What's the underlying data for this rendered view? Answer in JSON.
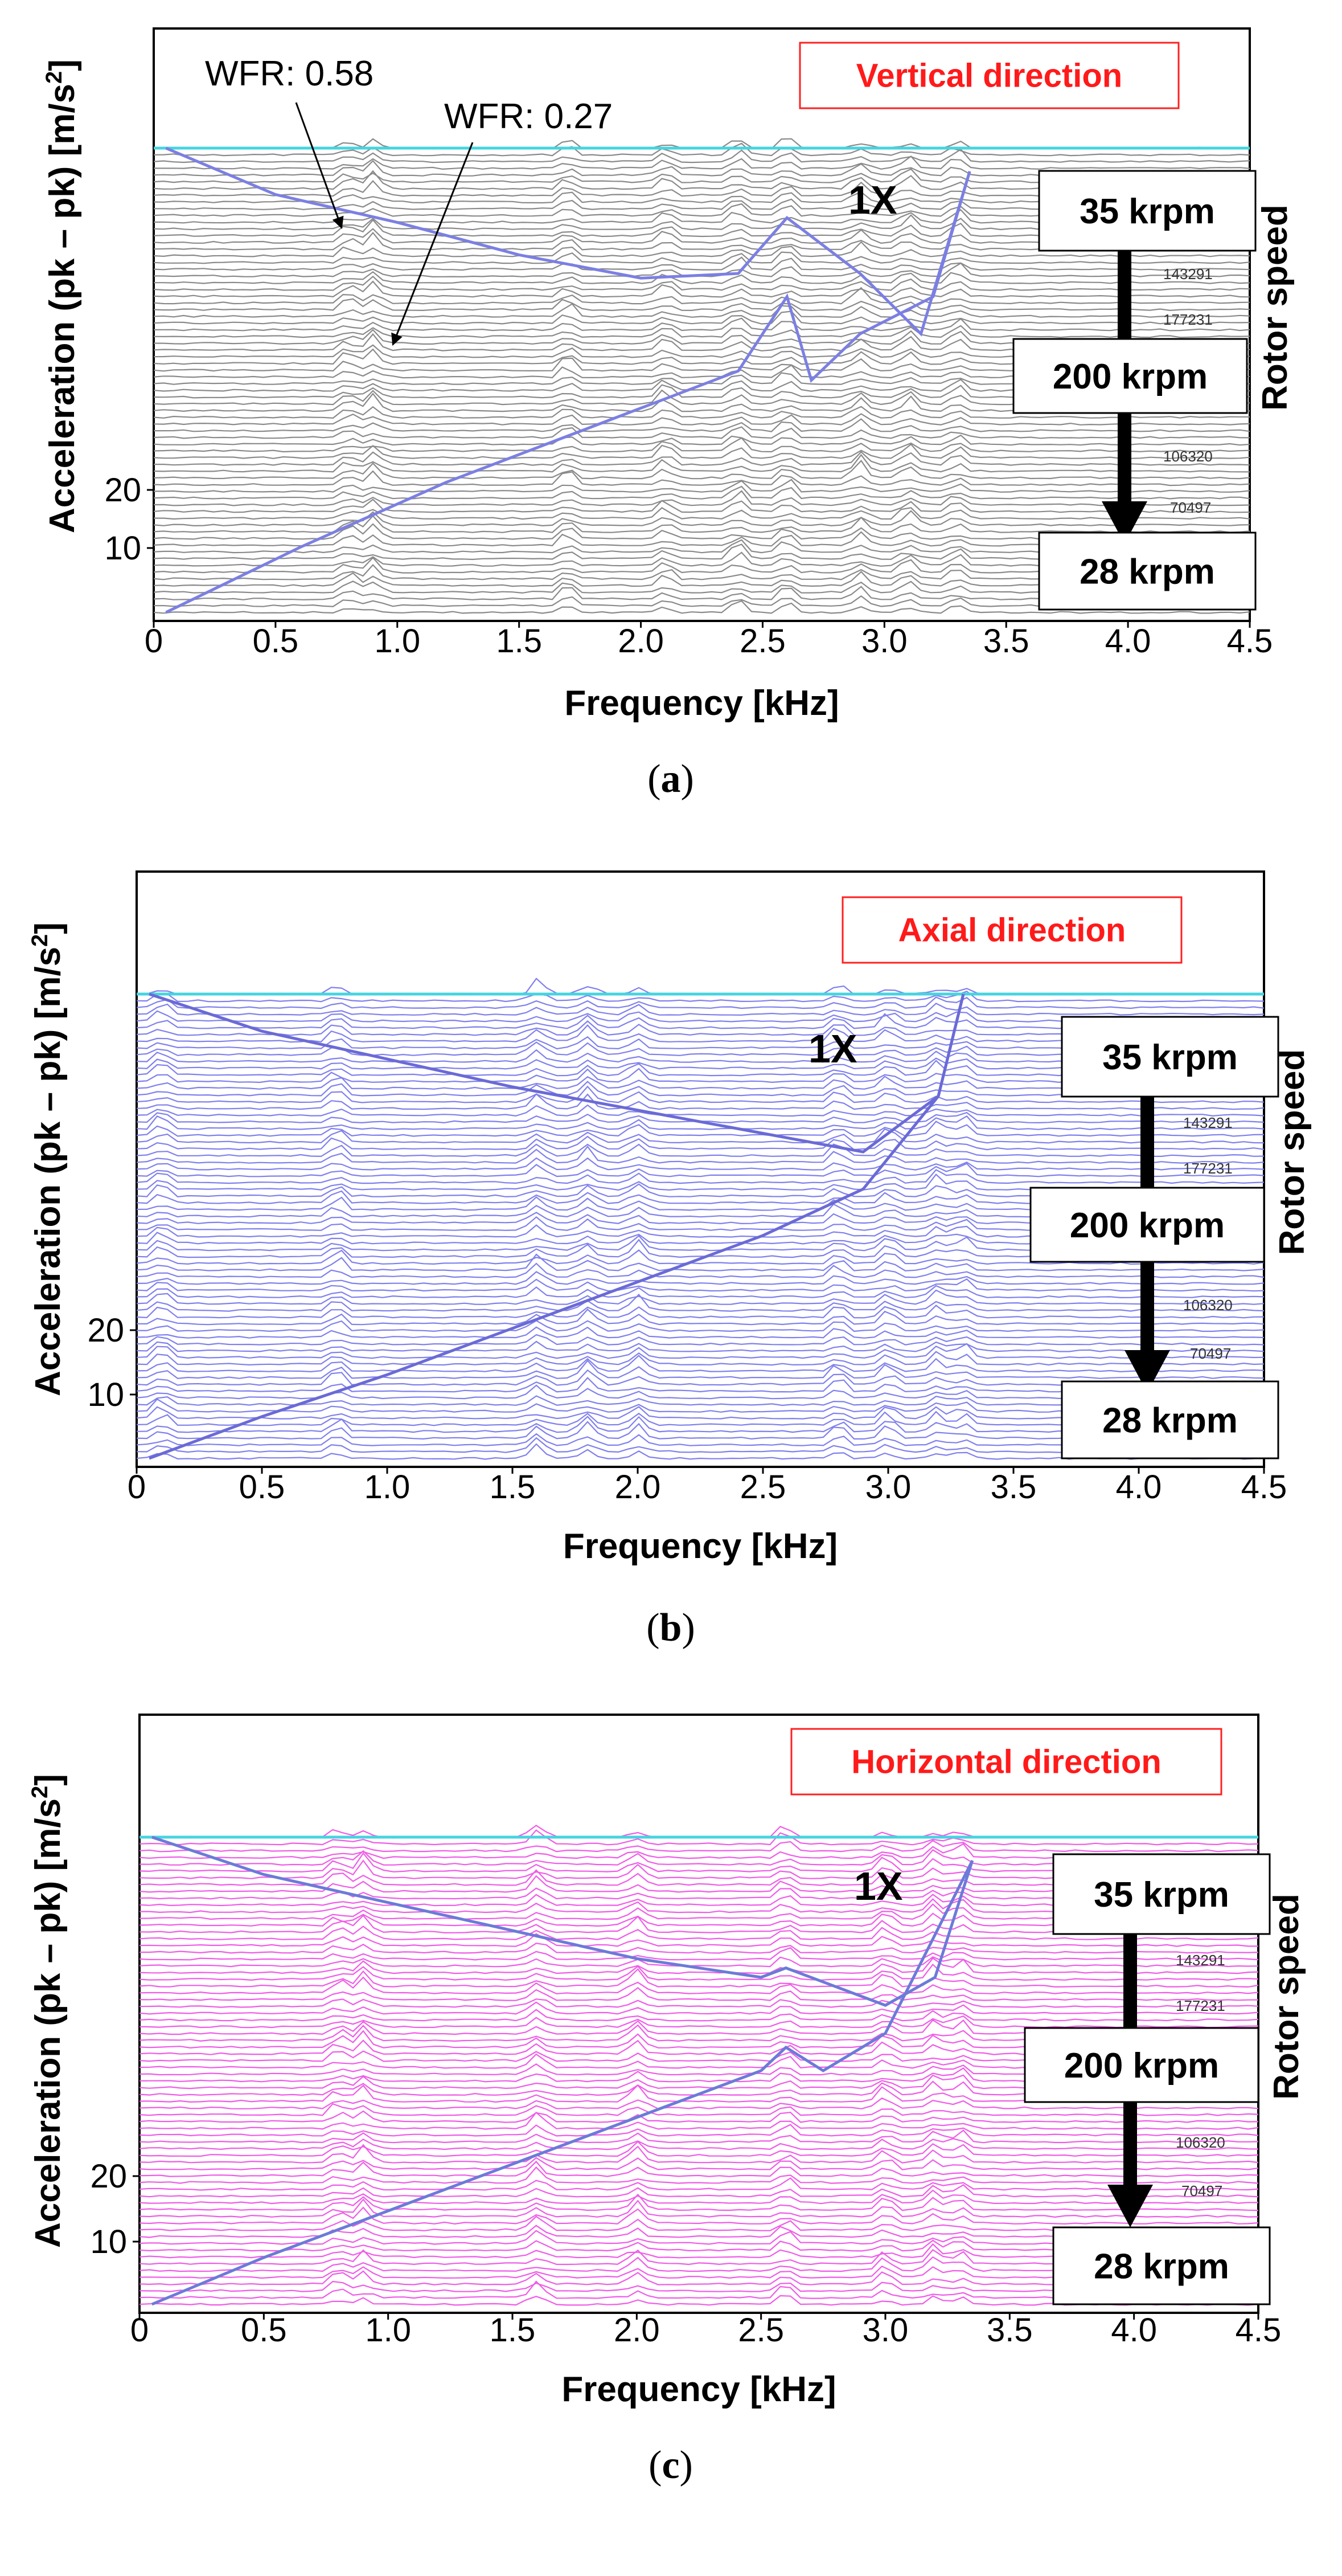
{
  "chart_data": [
    {
      "type": "waterfall",
      "panel_caption": "a",
      "title": "Vertical direction",
      "xlabel": "Frequency [kHz]",
      "ylabel": "Acceleration (pk – pk) [m/s²]",
      "ylabel_main": "Acceleration (pk – pk) [m/s",
      "ylabel_sup": "2",
      "ylabel_end": "]",
      "right_label": "Rotor speed",
      "xlim": [
        0,
        4.5
      ],
      "xticks": [
        "0",
        "0.5",
        "1.0",
        "1.5",
        "2.0",
        "2.5",
        "3.0",
        "3.5",
        "4.0",
        "4.5"
      ],
      "yticks": [
        "10",
        "20"
      ],
      "speed_boxes": [
        "35 krpm",
        "200 krpm",
        "28 krpm"
      ],
      "small_labels": [
        "143291",
        "177231",
        "106320",
        "70497"
      ],
      "harmonic_label": "1X",
      "annotations": [
        "WFR: 0.58",
        "WFR: 0.27"
      ],
      "trace_color": "#8a8a8a",
      "envelope_color": "#7b7fe3",
      "one_x_ramp_up": {
        "freq_khz": [
          0.05,
          0.6,
          1.2,
          1.8,
          2.4,
          2.6,
          2.7,
          2.9,
          3.2,
          3.35
        ],
        "level": [
          0,
          14,
          28,
          40,
          52,
          68,
          50,
          60,
          68,
          95
        ]
      },
      "one_x_ramp_down": {
        "freq_khz": [
          0.05,
          0.5,
          1.0,
          1.5,
          2.0,
          2.4,
          2.6,
          2.9,
          3.15,
          3.35
        ],
        "level": [
          100,
          90,
          84,
          77,
          72,
          73,
          85,
          73,
          60,
          95
        ]
      }
    },
    {
      "type": "waterfall",
      "panel_caption": "b",
      "title": "Axial direction",
      "xlabel": "Frequency [kHz]",
      "ylabel": "Acceleration (pk – pk) [m/s²]",
      "ylabel_main": "Acceleration (pk – pk) [m/s",
      "ylabel_sup": "2",
      "ylabel_end": "]",
      "right_label": "Rotor speed",
      "xlim": [
        0,
        4.5
      ],
      "xticks": [
        "0",
        "0.5",
        "1.0",
        "1.5",
        "2.0",
        "2.5",
        "3.0",
        "3.5",
        "4.0",
        "4.5"
      ],
      "yticks": [
        "10",
        "20"
      ],
      "speed_boxes": [
        "35 krpm",
        "200 krpm",
        "28 krpm"
      ],
      "small_labels": [
        "143291",
        "177231",
        "106320",
        "70497"
      ],
      "harmonic_label": "1X",
      "trace_color": "#8080ee",
      "envelope_color": "#6a6ad6",
      "one_x_ramp_up": {
        "freq_khz": [
          0.05,
          0.5,
          1.0,
          1.5,
          2.0,
          2.5,
          2.9,
          3.2,
          3.3
        ],
        "level": [
          0,
          9,
          18,
          28,
          38,
          48,
          58,
          78,
          100
        ]
      },
      "one_x_ramp_down": {
        "freq_khz": [
          0.05,
          0.5,
          1.0,
          1.5,
          2.0,
          2.5,
          2.9,
          3.2,
          3.3
        ],
        "level": [
          100,
          92,
          86,
          80,
          75,
          70,
          66,
          78,
          100
        ]
      }
    },
    {
      "type": "waterfall",
      "panel_caption": "c",
      "title": "Horizontal direction",
      "xlabel": "Frequency [kHz]",
      "ylabel": "Acceleration (pk – pk) [m/s²]",
      "ylabel_main": "Acceleration (pk – pk) [m/s",
      "ylabel_sup": "2",
      "ylabel_end": "]",
      "right_label": "Rotor speed",
      "xlim": [
        0,
        4.5
      ],
      "xticks": [
        "0",
        "0.5",
        "1.0",
        "1.5",
        "2.0",
        "2.5",
        "3.0",
        "3.5",
        "4.0",
        "4.5"
      ],
      "yticks": [
        "10",
        "20"
      ],
      "speed_boxes": [
        "35 krpm",
        "200 krpm",
        "28 krpm"
      ],
      "small_labels": [
        "143291",
        "177231",
        "106320",
        "70497"
      ],
      "harmonic_label": "1X",
      "trace_color": "#f05ce8",
      "envelope_color": "#6b7bd8",
      "one_x_ramp_up": {
        "freq_khz": [
          0.05,
          0.5,
          1.0,
          1.5,
          2.0,
          2.5,
          2.6,
          2.75,
          3.0,
          3.35
        ],
        "level": [
          0,
          10,
          20,
          30,
          40,
          50,
          55,
          50,
          58,
          95
        ]
      },
      "one_x_ramp_down": {
        "freq_khz": [
          0.05,
          0.5,
          1.0,
          1.5,
          2.0,
          2.5,
          2.6,
          3.0,
          3.2,
          3.35
        ],
        "level": [
          100,
          92,
          86,
          80,
          74,
          70,
          72,
          64,
          70,
          95
        ]
      }
    }
  ]
}
